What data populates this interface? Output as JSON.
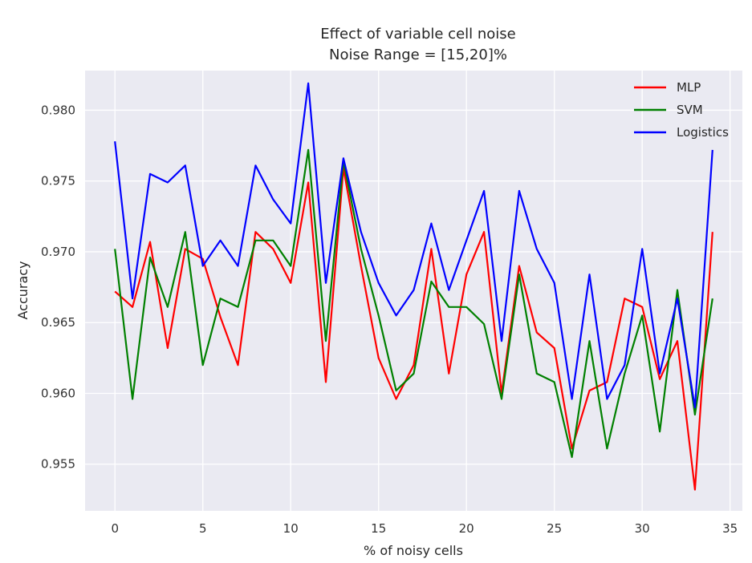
{
  "chart_data": {
    "type": "line",
    "title": "Effect of variable cell noise",
    "subtitle": "Noise Range = [15,20]%",
    "xlabel": "% of noisy cells",
    "ylabel": "Accuracy",
    "xlim": [
      -1.7,
      35.7
    ],
    "ylim": [
      0.9517,
      0.9828
    ],
    "x_ticks": [
      0,
      5,
      10,
      15,
      20,
      25,
      30,
      35
    ],
    "x_tick_labels": [
      "0",
      "5",
      "10",
      "15",
      "20",
      "25",
      "30",
      "35"
    ],
    "y_ticks": [
      0.955,
      0.96,
      0.965,
      0.97,
      0.975,
      0.98
    ],
    "y_tick_labels": [
      "0.955",
      "0.960",
      "0.965",
      "0.970",
      "0.975",
      "0.980"
    ],
    "grid": true,
    "legend_position": "top-right",
    "x": [
      0,
      1,
      2,
      3,
      4,
      5,
      6,
      7,
      8,
      9,
      10,
      11,
      12,
      13,
      14,
      15,
      16,
      17,
      18,
      19,
      20,
      21,
      22,
      23,
      24,
      25,
      26,
      27,
      28,
      29,
      30,
      31,
      32,
      33,
      34
    ],
    "series": [
      {
        "name": "MLP",
        "color": "#ff0000",
        "values": [
          0.9672,
          0.9661,
          0.9707,
          0.9632,
          0.9702,
          0.9695,
          0.9654,
          0.962,
          0.9714,
          0.9702,
          0.9678,
          0.9749,
          0.9608,
          0.9759,
          0.969,
          0.9625,
          0.9596,
          0.962,
          0.9702,
          0.9614,
          0.9684,
          0.9714,
          0.96,
          0.969,
          0.9643,
          0.9632,
          0.9561,
          0.9602,
          0.9608,
          0.9667,
          0.9661,
          0.961,
          0.9637,
          0.9532,
          0.9714
        ]
      },
      {
        "name": "SVM",
        "color": "#008000",
        "values": [
          0.9702,
          0.9596,
          0.9696,
          0.9661,
          0.9714,
          0.962,
          0.9667,
          0.9661,
          0.9708,
          0.9708,
          0.969,
          0.9772,
          0.9637,
          0.9764,
          0.9702,
          0.9655,
          0.9602,
          0.9614,
          0.9679,
          0.9661,
          0.9661,
          0.9649,
          0.9596,
          0.9684,
          0.9614,
          0.9608,
          0.9555,
          0.9637,
          0.9561,
          0.9614,
          0.9655,
          0.9573,
          0.9673,
          0.9585,
          0.9667
        ]
      },
      {
        "name": "Logistics",
        "color": "#0000ff",
        "values": [
          0.9778,
          0.9667,
          0.9755,
          0.9749,
          0.9761,
          0.969,
          0.9708,
          0.969,
          0.9761,
          0.9737,
          0.972,
          0.9819,
          0.9678,
          0.9766,
          0.9714,
          0.9678,
          0.9655,
          0.9673,
          0.972,
          0.9673,
          0.9708,
          0.9743,
          0.9637,
          0.9743,
          0.9702,
          0.9678,
          0.9596,
          0.9684,
          0.9596,
          0.962,
          0.9702,
          0.9614,
          0.9667,
          0.959,
          0.9772
        ]
      }
    ]
  }
}
